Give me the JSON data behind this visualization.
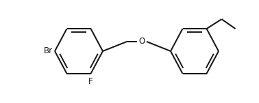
{
  "background_color": "#ffffff",
  "line_color": "#1a1a1a",
  "line_width": 1.5,
  "fig_width": 3.78,
  "fig_height": 1.51,
  "dpi": 100,
  "xlim": [
    0,
    378
  ],
  "ylim": [
    0,
    151
  ]
}
